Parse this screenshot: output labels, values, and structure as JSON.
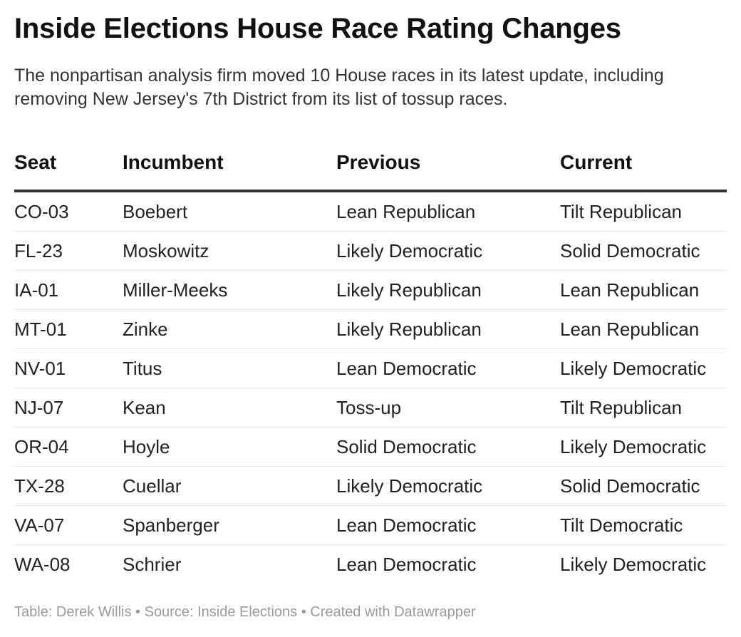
{
  "title": "Inside Elections House Race Rating Changes",
  "subtitle": "The nonpartisan analysis firm moved 10 House races in its latest update, including removing New Jersey's 7th District from its list of tossup races.",
  "footer": "Table: Derek Willis • Source: Inside Elections • Created with Datawrapper",
  "chart_data": {
    "type": "table",
    "title": "Inside Elections House Race Rating Changes",
    "columns": [
      "Seat",
      "Incumbent",
      "Previous",
      "Current"
    ],
    "rows": [
      [
        "CO-03",
        "Boebert",
        "Lean Republican",
        "Tilt Republican"
      ],
      [
        "FL-23",
        "Moskowitz",
        "Likely Democratic",
        "Solid Democratic"
      ],
      [
        "IA-01",
        "Miller-Meeks",
        "Likely Republican",
        "Lean Republican"
      ],
      [
        "MT-01",
        "Zinke",
        "Likely Republican",
        "Lean Republican"
      ],
      [
        "NV-01",
        "Titus",
        "Lean Democratic",
        "Likely Democratic"
      ],
      [
        "NJ-07",
        "Kean",
        "Toss-up",
        "Tilt Republican"
      ],
      [
        "OR-04",
        "Hoyle",
        "Solid Democratic",
        "Likely Democratic"
      ],
      [
        "TX-28",
        "Cuellar",
        "Likely Democratic",
        "Solid Democratic"
      ],
      [
        "VA-07",
        "Spanberger",
        "Lean Democratic",
        "Tilt Democratic"
      ],
      [
        "WA-08",
        "Schrier",
        "Lean Democratic",
        "Likely Democratic"
      ]
    ]
  }
}
